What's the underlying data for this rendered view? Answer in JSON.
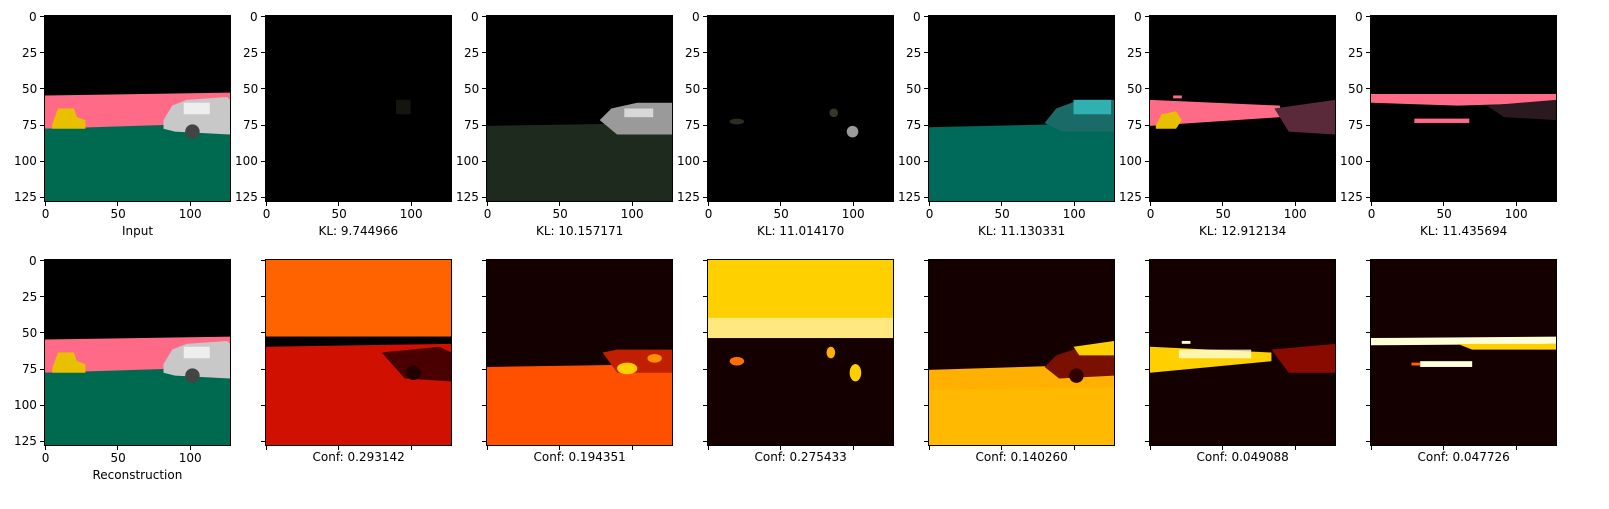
{
  "figure": {
    "rows": [
      {
        "kind": "decoder-output",
        "captions": [
          "Input",
          "KL: 9.744966",
          "KL: 10.157171",
          "KL: 11.014170",
          "KL: 11.130331",
          "KL: 12.912134",
          "KL: 11.435694"
        ]
      },
      {
        "kind": "confidence-map",
        "captions": [
          "Reconstruction",
          "Conf: 0.293142",
          "Conf: 0.194351",
          "Conf: 0.275433",
          "Conf: 0.140260",
          "Conf: 0.049088",
          "Conf: 0.047726"
        ]
      }
    ],
    "axis": {
      "xticks": [
        "0",
        "50",
        "100"
      ],
      "yticks": [
        "0",
        "25",
        "50",
        "75",
        "100",
        "125"
      ]
    },
    "colors": {
      "sky": "#000000",
      "pink_region": "#ff6b86",
      "ground": "#006a50",
      "yellow_object": "#e8c000",
      "car": "#c8c8c8",
      "heat_dark": "#150000",
      "heat_red": "#d01000",
      "heat_orange": "#ff5000",
      "heat_yellow": "#ffd000",
      "heat_white": "#ffffd8"
    }
  }
}
